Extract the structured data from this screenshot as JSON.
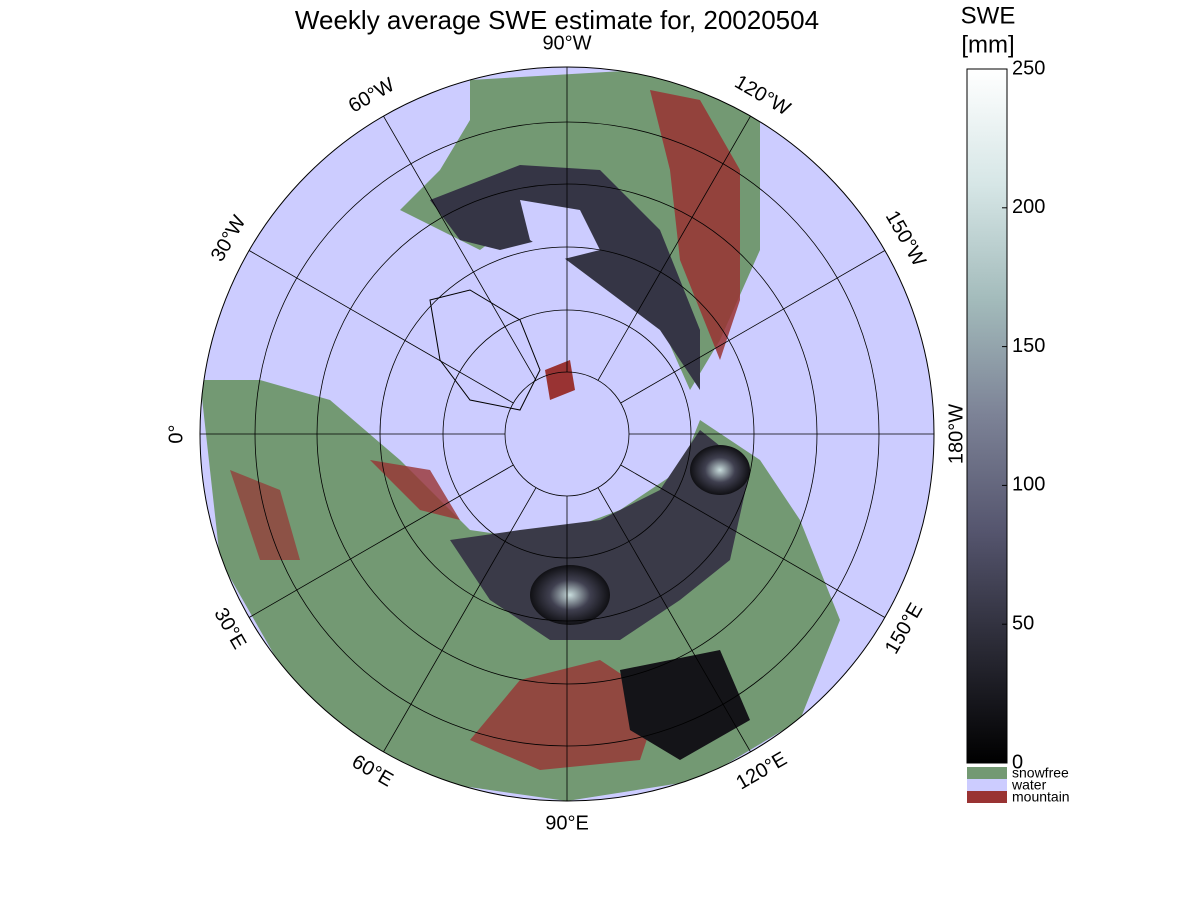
{
  "title": "Weekly average SWE estimate for, 20020504",
  "lon_ticks": [
    {
      "value": -90,
      "label": "90°W"
    },
    {
      "value": -120,
      "label": "120°W"
    },
    {
      "value": -150,
      "label": "150°W"
    },
    {
      "value": 180,
      "label": "180°W"
    },
    {
      "value": 150,
      "label": "150°E"
    },
    {
      "value": 120,
      "label": "120°E"
    },
    {
      "value": 90,
      "label": "90°E"
    },
    {
      "value": 60,
      "label": "60°E"
    },
    {
      "value": 30,
      "label": "30°E"
    },
    {
      "value": 0,
      "label": "0°"
    },
    {
      "value": -30,
      "label": "30°W"
    },
    {
      "value": -60,
      "label": "60°W"
    }
  ],
  "colorbar": {
    "label": [
      "SWE",
      "[mm]"
    ],
    "lim": [
      0,
      250
    ],
    "ticks": [
      0,
      50,
      100,
      150,
      200,
      250
    ],
    "colormap": [
      "#000000",
      "#2a2a35",
      "#55556e",
      "#7c8296",
      "#a3bbbb",
      "#d6e6e6",
      "#ffffff"
    ]
  },
  "legend": [
    {
      "name": "snowfree",
      "color": "#739973"
    },
    {
      "name": "water",
      "color": "#ccccff"
    },
    {
      "name": "mountain",
      "color": "#993333"
    }
  ]
}
